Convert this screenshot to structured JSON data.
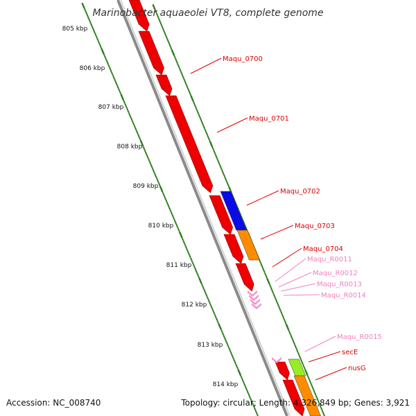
{
  "title": "Marinobacter aquaeolei VT8, complete genome",
  "footer": {
    "accession": "Accession: NC_008740",
    "summary": "Topology: circular; Length: 4,326,849 bp; Genes: 3,921"
  },
  "colors": {
    "backbone": "#8a8a8a",
    "tick": "#2b7d1b",
    "cds": "#ee0000",
    "cds_alt": "#0b0be6",
    "cds_orange": "#ff8c00",
    "cds_lime": "#96ee22",
    "rna": "#f48cc8",
    "label_cds": "#dd0000",
    "label_rna": "#f080bf"
  },
  "scale": {
    "unit": "kbp",
    "major_ticks": [
      "805 kbp",
      "806 kbp",
      "807 kbp",
      "808 kbp",
      "809 kbp",
      "810 kbp",
      "811 kbp",
      "812 kbp",
      "813 kbp",
      "814 kbp"
    ]
  },
  "features": [
    {
      "name": "Maqu_0700",
      "color": "cds"
    },
    {
      "name": "Maqu_0701",
      "color": "cds"
    },
    {
      "name": "Maqu_0702",
      "color": "cds_alt"
    },
    {
      "name": "Maqu_0703",
      "color": "cds_orange"
    },
    {
      "name": "Maqu_0704",
      "color": "cds"
    },
    {
      "name": "Maqu_R0011",
      "color": "rna"
    },
    {
      "name": "Maqu_R0012",
      "color": "rna"
    },
    {
      "name": "Maqu_R0013",
      "color": "rna"
    },
    {
      "name": "Maqu_R0014",
      "color": "rna"
    },
    {
      "name": "Maqu_R0015",
      "color": "rna"
    },
    {
      "name": "secE",
      "color": "cds_lime"
    },
    {
      "name": "nusG",
      "color": "cds_orange"
    }
  ]
}
